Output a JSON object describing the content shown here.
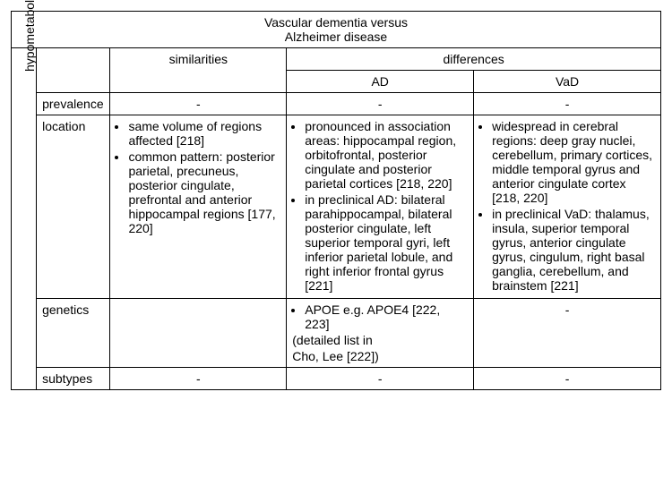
{
  "title_l1": "Vascular dementia versus",
  "title_l2": "Alzheimer disease",
  "headers": {
    "similarities": "similarities",
    "differences": "differences",
    "ad": "AD",
    "vad": "VaD"
  },
  "section_label": "hypometabolism (glucose)",
  "rows": {
    "prevalence": {
      "label": "prevalence",
      "sim_dash": "-",
      "ad_dash": "-",
      "vad_dash": "-"
    },
    "location": {
      "label": "location",
      "sim_bullets": [
        "same volume of regions affected [218]",
        "common pattern: posterior parietal, precuneus, posterior cingulate, prefrontal and anterior hippocampal regions [177, 220]"
      ],
      "ad_bullets": [
        "pronounced in association areas: hippocampal region, orbitofrontal, posterior cingulate and posterior parietal cortices [218, 220]",
        "in preclinical AD: bilateral parahippocampal, bilateral posterior cingulate, left superior temporal gyri, left inferior parietal lobule, and right inferior frontal gyrus [221]"
      ],
      "vad_bullets": [
        "widespread in cerebral regions: deep gray nuclei, cerebellum, primary cortices, middle temporal gyrus and anterior cingulate cortex [218, 220]",
        "in preclinical VaD: thalamus, insula, superior temporal gyrus, anterior cingulate gyrus, cingulum, right basal ganglia, cerebellum, and brainstem [221]"
      ]
    },
    "genetics": {
      "label": "genetics",
      "sim_blank": "",
      "ad_bullets": [
        "APOE e.g. APOE4 [222, 223]"
      ],
      "ad_extra_l1": "(detailed list in",
      "ad_extra_l2": "Cho, Lee [222])",
      "vad_dash": "-"
    },
    "subtypes": {
      "label": "subtypes",
      "sim_dash": "-",
      "ad_dash": "-",
      "vad_dash": "-"
    }
  }
}
